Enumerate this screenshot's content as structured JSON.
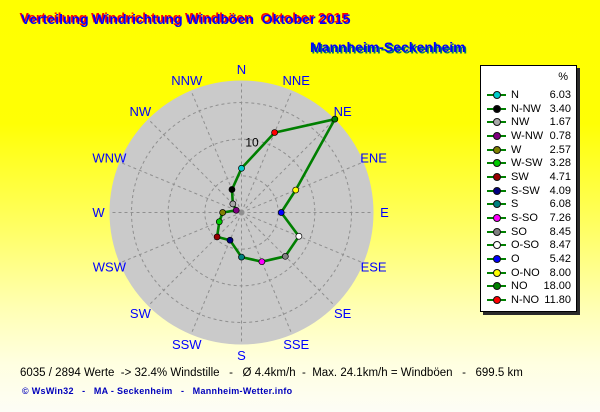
{
  "header": {
    "title": "Verteilung Windrichtung Windböen  Oktober 2015",
    "station": "Mannheim-Seckenheim"
  },
  "statusbar": {
    "text": "6035 / 2894 Werte  -> 32.4% Windstille   -   Ø 4.4km/h  -  Max. 24.1km/h = Windböen   -   699.5 km"
  },
  "footer": {
    "text": "© WsWin32   -   MA - Seckenheim   -   Mannheim-Wetter.info"
  },
  "colors": {
    "background_top": "#FFFF00",
    "background_bottom": "#FDFDF6",
    "title_text": "#0000FF",
    "title_shadow": "#FF0000",
    "station_shadow": "#007070",
    "disc": "#CACACA",
    "grid": "#8F8F8F",
    "line": "#007F00",
    "direction_labels": "#0000FF",
    "ring_label_color": "#000000",
    "footer_text": "#0000BB"
  },
  "chart_data": {
    "type": "line",
    "subtype": "polar-windrose",
    "title": "Verteilung Windrichtung Windböen Oktober 2015",
    "categories": [
      "N",
      "NNE",
      "NE",
      "ENE",
      "E",
      "ESE",
      "SE",
      "SSE",
      "S",
      "SSW",
      "SW",
      "WSW",
      "W",
      "WNW",
      "NW",
      "NNW"
    ],
    "values": [
      6.03,
      11.8,
      18.0,
      8.0,
      5.42,
      8.47,
      8.45,
      7.26,
      6.08,
      4.09,
      4.71,
      3.28,
      2.57,
      0.78,
      1.67,
      3.4
    ],
    "point_colors": [
      "#00CCCC",
      "#FF0000",
      "#008000",
      "#FFFF00",
      "#0000FF",
      "#FFFFFF",
      "#808080",
      "#FF00FF",
      "#008080",
      "#000080",
      "#990000",
      "#00CC00",
      "#808000",
      "#800080",
      "#A8A8A8",
      "#000000"
    ],
    "rlim": [
      0,
      18
    ],
    "rings": [
      5,
      10,
      15
    ],
    "ring_label": "10",
    "grid": true,
    "legend_position": "right",
    "legend_header": "%",
    "legend": [
      {
        "label": "N",
        "value": "6.03",
        "color": "#00CCCC"
      },
      {
        "label": "N-NW",
        "value": "3.40",
        "color": "#000000"
      },
      {
        "label": "NW",
        "value": "1.67",
        "color": "#A8A8A8"
      },
      {
        "label": "W-NW",
        "value": "0.78",
        "color": "#800080"
      },
      {
        "label": "W",
        "value": "2.57",
        "color": "#808000"
      },
      {
        "label": "W-SW",
        "value": "3.28",
        "color": "#00CC00"
      },
      {
        "label": "SW",
        "value": "4.71",
        "color": "#990000"
      },
      {
        "label": "S-SW",
        "value": "4.09",
        "color": "#000080"
      },
      {
        "label": "S",
        "value": "6.08",
        "color": "#008080"
      },
      {
        "label": "S-SO",
        "value": "7.26",
        "color": "#FF00FF"
      },
      {
        "label": "SO",
        "value": "8.45",
        "color": "#808080"
      },
      {
        "label": "O-SO",
        "value": "8.47",
        "color": "#FFFFFF"
      },
      {
        "label": "O",
        "value": "5.42",
        "color": "#0000FF"
      },
      {
        "label": "O-NO",
        "value": "8.00",
        "color": "#FFFF00"
      },
      {
        "label": "NO",
        "value": "18.00",
        "color": "#008000"
      },
      {
        "label": "N-NO",
        "value": "11.80",
        "color": "#FF0000"
      }
    ]
  }
}
